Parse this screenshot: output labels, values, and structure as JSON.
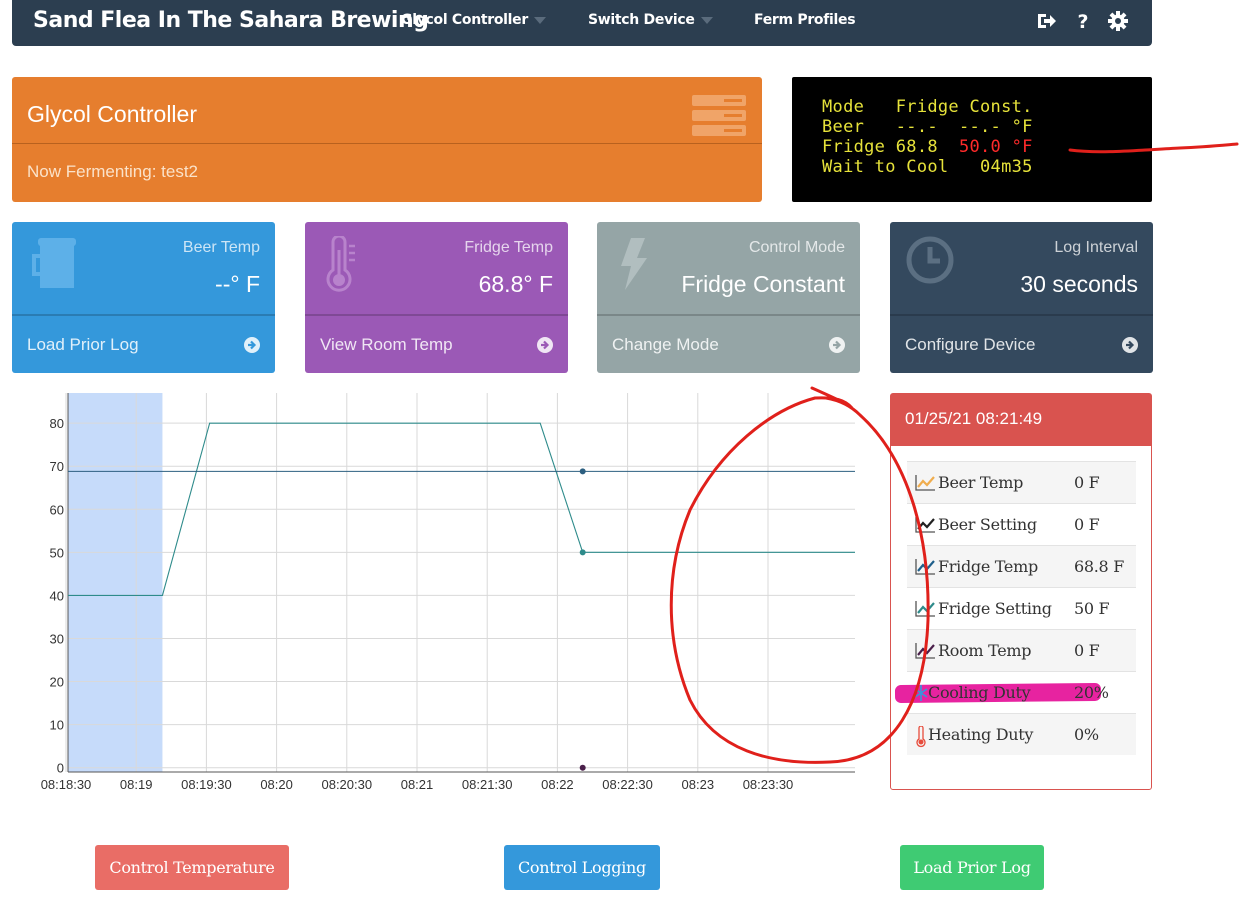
{
  "navbar": {
    "brand": "Sand Flea In The Sahara Brewing",
    "items": [
      {
        "label": "Glycol Controller",
        "dropdown": true
      },
      {
        "label": "Switch Device",
        "dropdown": true
      },
      {
        "label": "Ferm Profiles",
        "dropdown": false
      }
    ],
    "icons": [
      "sign-out-icon",
      "help-icon",
      "gear-icon"
    ]
  },
  "header": {
    "title": "Glycol Controller",
    "subtitle": "Now Fermenting: test2",
    "color": "#e67e2e"
  },
  "lcd": {
    "line1": "Mode   Fridge Const.",
    "line2": "Beer   --.-  --.- °F",
    "line3a": "Fridge 68.8  ",
    "line3b": "50.0 °F",
    "line4": "Wait to Cool   04m35"
  },
  "stats": [
    {
      "label": "Beer Temp",
      "value": "--° F",
      "link": "Load Prior Log",
      "color": "#3498db",
      "icon": "mug-icon"
    },
    {
      "label": "Fridge Temp",
      "value": "68.8° F",
      "link": "View Room Temp",
      "color": "#9b59b6",
      "icon": "thermometer-icon"
    },
    {
      "label": "Control Mode",
      "value": "Fridge Constant",
      "link": "Change Mode",
      "color": "#95a5a6",
      "icon": "bolt-icon"
    },
    {
      "label": "Log Interval",
      "value": "30 seconds",
      "link": "Configure Device",
      "color": "#34495e",
      "icon": "clock-icon"
    }
  ],
  "chart_data": {
    "type": "line",
    "x_ticks": [
      "08:18:30",
      "08:19",
      "08:19:30",
      "08:20",
      "08:20:30",
      "08:21",
      "08:21:30",
      "08:22",
      "08:22:30",
      "08:23",
      "08:23:30"
    ],
    "y_ticks": [
      0,
      10,
      20,
      30,
      40,
      50,
      60,
      70,
      80
    ],
    "ylim": [
      -1,
      87
    ],
    "x_range_seconds": [
      0,
      400
    ],
    "grid": true,
    "shaded_region_seconds": [
      0,
      60
    ],
    "series": [
      {
        "color": "#2e8b8b",
        "points": [
          [
            0,
            40
          ],
          [
            60,
            40
          ],
          [
            90,
            80
          ],
          [
            300,
            80
          ],
          [
            327,
            50
          ],
          [
            500,
            50
          ]
        ]
      },
      {
        "color": "#2c5f80",
        "points": [
          [
            0,
            68.8
          ],
          [
            500,
            68.8
          ]
        ]
      },
      {
        "color": "#4a1f4a",
        "points": [
          [
            327,
            0
          ]
        ]
      }
    ],
    "markers": [
      [
        327,
        68.8
      ],
      [
        327,
        50
      ],
      [
        327,
        0
      ]
    ]
  },
  "info": {
    "timestamp": "01/25/21 08:21:49",
    "rows": [
      {
        "name": "Beer Temp",
        "value": "0 F",
        "icon_color": "#f0ad4e"
      },
      {
        "name": "Beer Setting",
        "value": "0 F",
        "icon_color": "#222222"
      },
      {
        "name": "Fridge Temp",
        "value": "68.8 F",
        "icon_color": "#1f5f8b"
      },
      {
        "name": "Fridge Setting",
        "value": "50 F",
        "icon_color": "#2e8b8b"
      },
      {
        "name": "Room Temp",
        "value": "0 F",
        "icon_color": "#4a1f4a"
      },
      {
        "name": "Cooling Duty",
        "value": "20%",
        "icon_color": "#3498db"
      },
      {
        "name": "Heating Duty",
        "value": "0%",
        "icon_color": "#e74c3c"
      }
    ]
  },
  "buttons": {
    "control_temperature": "Control Temperature",
    "control_logging": "Control Logging",
    "load_prior_log": "Load Prior Log"
  }
}
